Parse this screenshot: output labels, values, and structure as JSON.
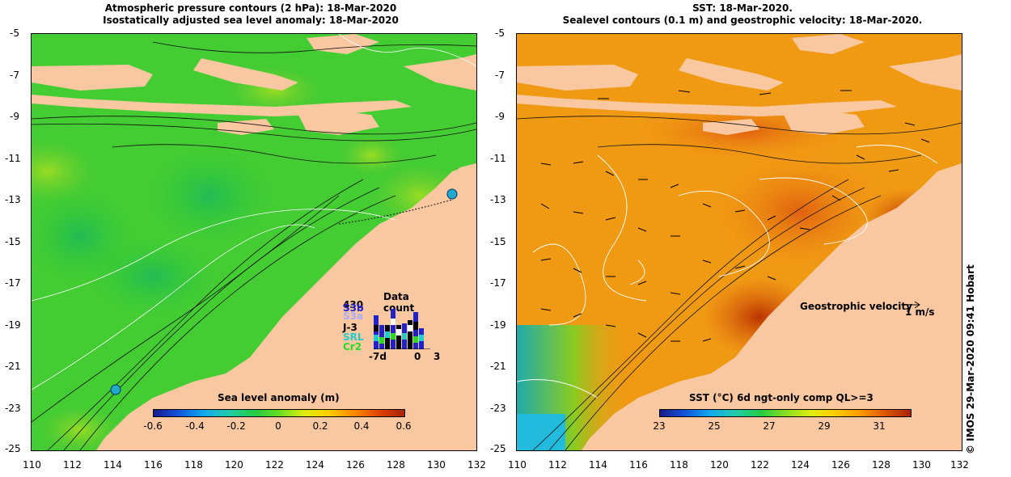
{
  "left_panel": {
    "title_line1": "Atmospheric pressure contours (2 hPa): 18-Mar-2020",
    "title_line2": "Isostatically adjusted sea level anomaly: 18-Mar-2020",
    "y_ticks": [
      "-5",
      "-7",
      "-9",
      "-11",
      "-13",
      "-15",
      "-17",
      "-19",
      "-21",
      "-23",
      "-25"
    ],
    "x_ticks": [
      "110",
      "112",
      "114",
      "116",
      "118",
      "120",
      "122",
      "124",
      "126",
      "128",
      "130",
      "132"
    ],
    "colorbar_label": "Sea level anomaly (m)",
    "colorbar_ticks": [
      "-0.6",
      "-0.4",
      "-0.2",
      "0",
      "0.2",
      "0.4",
      "0.6"
    ],
    "data_count": {
      "title": "Data count",
      "series": [
        "430",
        "S3b",
        "S3a",
        "J-3",
        "SRL",
        "Cr2"
      ],
      "series_colors": [
        "#000000",
        "#2222cc",
        "#aaaaff",
        "#000000",
        "#22cccc",
        "#22dd22"
      ],
      "axis_labels": [
        "-7d",
        "0",
        "3"
      ]
    }
  },
  "right_panel": {
    "title_line1": "SST: 18-Mar-2020.",
    "title_line2": "Sealevel contours (0.1 m) and geostrophic velocity: 18-Mar-2020.",
    "y_ticks": [
      "-5",
      "-7",
      "-9",
      "-11",
      "-13",
      "-15",
      "-17",
      "-19",
      "-21",
      "-23",
      "-25"
    ],
    "x_ticks": [
      "110",
      "112",
      "114",
      "116",
      "118",
      "120",
      "122",
      "124",
      "126",
      "128",
      "130",
      "132"
    ],
    "colorbar_label": "SST (°C) 6d ngt-only comp QL>=3",
    "colorbar_ticks": [
      "23",
      "25",
      "27",
      "29",
      "31"
    ],
    "velocity_label": "Geostrophic velocity",
    "velocity_scale": "1 m/s"
  },
  "credit": "© IMOS 29-Mar-2020 09:41 Hobart",
  "colors": {
    "land": "#fac8a0",
    "sla_base": "#33cc33",
    "sst_base": "#f29a10"
  }
}
